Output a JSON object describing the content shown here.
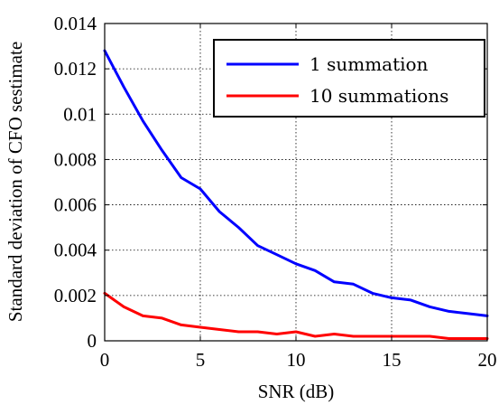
{
  "chart_data": {
    "type": "line",
    "xlabel": "SNR (dB)",
    "ylabel": "Standard deviation of CFO sestimate",
    "xlim": [
      0,
      20
    ],
    "ylim": [
      0,
      0.014
    ],
    "x_ticks": [
      "0",
      "5",
      "10",
      "15",
      "20"
    ],
    "y_ticks": [
      "0",
      "0.002",
      "0.004",
      "0.006",
      "0.008",
      "0.01",
      "0.012",
      "0.014"
    ],
    "grid": true,
    "legend_position": "top-right",
    "x": [
      0,
      1,
      2,
      3,
      4,
      5,
      6,
      7,
      8,
      9,
      10,
      11,
      12,
      13,
      14,
      15,
      16,
      17,
      18,
      19,
      20
    ],
    "series": [
      {
        "name": "1 summation",
        "color": "#0000ff",
        "values": [
          0.0128,
          0.0112,
          0.0097,
          0.0084,
          0.0072,
          0.0067,
          0.0057,
          0.005,
          0.0042,
          0.0038,
          0.0034,
          0.0031,
          0.0026,
          0.0025,
          0.0021,
          0.0019,
          0.0018,
          0.0015,
          0.0013,
          0.0012,
          0.0011
        ]
      },
      {
        "name": "10 summations",
        "color": "#ff0000",
        "values": [
          0.0021,
          0.0015,
          0.0011,
          0.001,
          0.0007,
          0.0006,
          0.0005,
          0.0004,
          0.0004,
          0.0003,
          0.0004,
          0.0002,
          0.0003,
          0.0002,
          0.0002,
          0.0002,
          0.0002,
          0.0002,
          0.0001,
          0.0001,
          0.0001
        ]
      }
    ]
  }
}
